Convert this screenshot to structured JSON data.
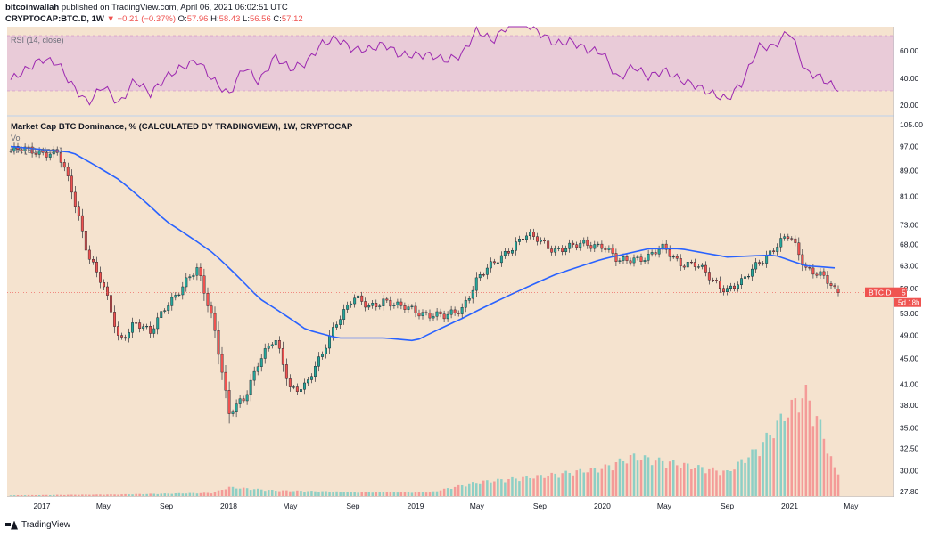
{
  "header": {
    "author": "bitcoinwallah",
    "published": " published on TradingView.com, April 06, 2021 06:02:51 UTC",
    "symbol": "CRYPTOCAP:BTC.D, 1W",
    "change": "▼ −0.21 (−0.37%)",
    "o_label": "O:",
    "o": "57.96",
    "h_label": "H:",
    "h": "58.43",
    "l_label": "L:",
    "l": "56.56",
    "c_label": "C:",
    "c": "57.12"
  },
  "rsi": {
    "label": "RSI (14, close)",
    "ticks": [
      "60.00",
      "40.00",
      "20.00"
    ]
  },
  "main": {
    "title": "Market Cap BTC Dominance, % (CALCULATED BY TRADINGVIEW), 1W, CRYPTOCAP",
    "vol_label": "Vol",
    "ma_label": "MA (50, close)",
    "price_tag": "BTC.D",
    "price_value": "57.12",
    "countdown": "5d 18h"
  },
  "footer": {
    "brand": "TradingView"
  },
  "colors": {
    "background": "#f5e3cf",
    "rsi_band": "#e8c8d6",
    "up": "#26a69a",
    "down": "#ef5350",
    "ma": "#2962ff",
    "rsi_line": "#9c27b0",
    "tag": "#ef5350"
  },
  "chart_data": {
    "type": "candlestick",
    "y_scale": "log",
    "yticks": [
      "105.00",
      "97.00",
      "89.00",
      "81.00",
      "73.00",
      "68.00",
      "63.00",
      "58.00",
      "53.00",
      "49.00",
      "45.00",
      "41.00",
      "38.00",
      "35.00",
      "32.50",
      "30.00",
      "27.80"
    ],
    "xticks": [
      "2017",
      "May",
      "Sep",
      "2018",
      "May",
      "Sep",
      "2019",
      "May",
      "Sep",
      "2020",
      "May",
      "Sep",
      "2021",
      "May"
    ],
    "price_path": [
      {
        "date": "2016-11",
        "value": 95.5
      },
      {
        "date": "2017-01",
        "value": 95.5
      },
      {
        "date": "2017-02",
        "value": 94.5
      },
      {
        "date": "2017-03",
        "value": 82
      },
      {
        "date": "2017-04",
        "value": 66
      },
      {
        "date": "2017-05",
        "value": 58
      },
      {
        "date": "2017-06",
        "value": 48
      },
      {
        "date": "2017-07",
        "value": 51.5
      },
      {
        "date": "2017-08",
        "value": 49
      },
      {
        "date": "2017-09",
        "value": 55
      },
      {
        "date": "2017-10",
        "value": 58
      },
      {
        "date": "2017-11",
        "value": 62
      },
      {
        "date": "2017-12",
        "value": 52
      },
      {
        "date": "2018-01",
        "value": 36.5
      },
      {
        "date": "2018-02",
        "value": 39
      },
      {
        "date": "2018-03",
        "value": 45
      },
      {
        "date": "2018-04",
        "value": 48
      },
      {
        "date": "2018-05",
        "value": 40.5
      },
      {
        "date": "2018-06",
        "value": 41
      },
      {
        "date": "2018-07",
        "value": 45
      },
      {
        "date": "2018-08",
        "value": 52
      },
      {
        "date": "2018-09",
        "value": 56
      },
      {
        "date": "2018-10",
        "value": 54
      },
      {
        "date": "2018-11",
        "value": 56
      },
      {
        "date": "2018-12",
        "value": 54
      },
      {
        "date": "2019-02",
        "value": 53
      },
      {
        "date": "2019-03",
        "value": 52
      },
      {
        "date": "2019-04",
        "value": 54
      },
      {
        "date": "2019-05",
        "value": 60
      },
      {
        "date": "2019-06",
        "value": 63
      },
      {
        "date": "2019-07",
        "value": 67
      },
      {
        "date": "2019-08",
        "value": 70
      },
      {
        "date": "2019-09",
        "value": 69
      },
      {
        "date": "2019-10",
        "value": 67
      },
      {
        "date": "2019-11",
        "value": 67
      },
      {
        "date": "2019-12",
        "value": 68.5
      },
      {
        "date": "2020-01",
        "value": 68
      },
      {
        "date": "2020-02",
        "value": 63.5
      },
      {
        "date": "2020-03",
        "value": 65
      },
      {
        "date": "2020-04",
        "value": 65
      },
      {
        "date": "2020-05",
        "value": 67
      },
      {
        "date": "2020-06",
        "value": 64
      },
      {
        "date": "2020-07",
        "value": 63
      },
      {
        "date": "2020-08",
        "value": 60
      },
      {
        "date": "2020-09",
        "value": 58
      },
      {
        "date": "2020-10",
        "value": 59
      },
      {
        "date": "2020-11",
        "value": 64
      },
      {
        "date": "2020-12",
        "value": 67
      },
      {
        "date": "2021-01",
        "value": 70
      },
      {
        "date": "2021-02",
        "value": 63
      },
      {
        "date": "2021-03",
        "value": 61
      },
      {
        "date": "2021-04",
        "value": 57.12
      }
    ],
    "ma50_path": [
      {
        "date": "2016-11",
        "value": 97
      },
      {
        "date": "2017-03",
        "value": 95
      },
      {
        "date": "2017-06",
        "value": 86
      },
      {
        "date": "2017-09",
        "value": 74
      },
      {
        "date": "2017-12",
        "value": 66
      },
      {
        "date": "2018-03",
        "value": 56
      },
      {
        "date": "2018-06",
        "value": 50
      },
      {
        "date": "2018-08",
        "value": 48.5
      },
      {
        "date": "2018-11",
        "value": 48.5
      },
      {
        "date": "2019-01",
        "value": 48
      },
      {
        "date": "2019-04",
        "value": 52
      },
      {
        "date": "2019-07",
        "value": 56.5
      },
      {
        "date": "2019-10",
        "value": 61
      },
      {
        "date": "2020-01",
        "value": 64.5
      },
      {
        "date": "2020-04",
        "value": 67
      },
      {
        "date": "2020-06",
        "value": 67
      },
      {
        "date": "2020-09",
        "value": 65
      },
      {
        "date": "2020-12",
        "value": 65.5
      },
      {
        "date": "2021-02",
        "value": 63
      },
      {
        "date": "2021-04",
        "value": 62.5
      }
    ],
    "rsi_levels": [
      70,
      30
    ],
    "rsi_path": [
      {
        "date": "2016-11",
        "value": 38
      },
      {
        "date": "2017-01",
        "value": 53
      },
      {
        "date": "2017-02",
        "value": 50
      },
      {
        "date": "2017-03",
        "value": 34
      },
      {
        "date": "2017-04",
        "value": 21
      },
      {
        "date": "2017-05",
        "value": 34
      },
      {
        "date": "2017-06",
        "value": 20
      },
      {
        "date": "2017-07",
        "value": 38
      },
      {
        "date": "2017-08",
        "value": 28
      },
      {
        "date": "2017-09",
        "value": 40
      },
      {
        "date": "2017-10",
        "value": 47
      },
      {
        "date": "2017-11",
        "value": 52
      },
      {
        "date": "2017-12",
        "value": 38
      },
      {
        "date": "2018-01",
        "value": 27
      },
      {
        "date": "2018-02",
        "value": 48
      },
      {
        "date": "2018-03",
        "value": 36
      },
      {
        "date": "2018-04",
        "value": 55
      },
      {
        "date": "2018-05",
        "value": 46
      },
      {
        "date": "2018-06",
        "value": 50
      },
      {
        "date": "2018-07",
        "value": 64
      },
      {
        "date": "2018-08",
        "value": 68
      },
      {
        "date": "2018-09",
        "value": 60
      },
      {
        "date": "2018-10",
        "value": 60
      },
      {
        "date": "2018-11",
        "value": 64
      },
      {
        "date": "2018-12",
        "value": 56
      },
      {
        "date": "2019-02",
        "value": 56
      },
      {
        "date": "2019-03",
        "value": 52
      },
      {
        "date": "2019-04",
        "value": 56
      },
      {
        "date": "2019-05",
        "value": 74
      },
      {
        "date": "2019-06",
        "value": 66
      },
      {
        "date": "2019-07",
        "value": 78
      },
      {
        "date": "2019-08",
        "value": 80
      },
      {
        "date": "2019-09",
        "value": 72
      },
      {
        "date": "2019-10",
        "value": 64
      },
      {
        "date": "2019-11",
        "value": 66
      },
      {
        "date": "2019-12",
        "value": 60
      },
      {
        "date": "2020-01",
        "value": 58
      },
      {
        "date": "2020-02",
        "value": 38
      },
      {
        "date": "2020-03",
        "value": 48
      },
      {
        "date": "2020-04",
        "value": 40
      },
      {
        "date": "2020-05",
        "value": 45
      },
      {
        "date": "2020-06",
        "value": 38
      },
      {
        "date": "2020-07",
        "value": 34
      },
      {
        "date": "2020-08",
        "value": 28
      },
      {
        "date": "2020-09",
        "value": 24
      },
      {
        "date": "2020-10",
        "value": 36
      },
      {
        "date": "2020-11",
        "value": 62
      },
      {
        "date": "2020-12",
        "value": 62
      },
      {
        "date": "2021-01",
        "value": 74
      },
      {
        "date": "2021-02",
        "value": 44
      },
      {
        "date": "2021-03",
        "value": 40
      },
      {
        "date": "2021-04",
        "value": 32
      }
    ],
    "volume_path": [
      {
        "date": "2016-11",
        "value": 0.2
      },
      {
        "date": "2017-06",
        "value": 0.4
      },
      {
        "date": "2017-12",
        "value": 0.8
      },
      {
        "date": "2018-01",
        "value": 2.2
      },
      {
        "date": "2018-04",
        "value": 1.4
      },
      {
        "date": "2018-09",
        "value": 1.0
      },
      {
        "date": "2019-02",
        "value": 1.0
      },
      {
        "date": "2019-05",
        "value": 3.5
      },
      {
        "date": "2019-09",
        "value": 5.0
      },
      {
        "date": "2020-01",
        "value": 7.0
      },
      {
        "date": "2020-03",
        "value": 10
      },
      {
        "date": "2020-06",
        "value": 8
      },
      {
        "date": "2020-09",
        "value": 6
      },
      {
        "date": "2020-11",
        "value": 12
      },
      {
        "date": "2021-01",
        "value": 22
      },
      {
        "date": "2021-02",
        "value": 26
      },
      {
        "date": "2021-03",
        "value": 18
      },
      {
        "date": "2021-04",
        "value": 6
      }
    ]
  }
}
